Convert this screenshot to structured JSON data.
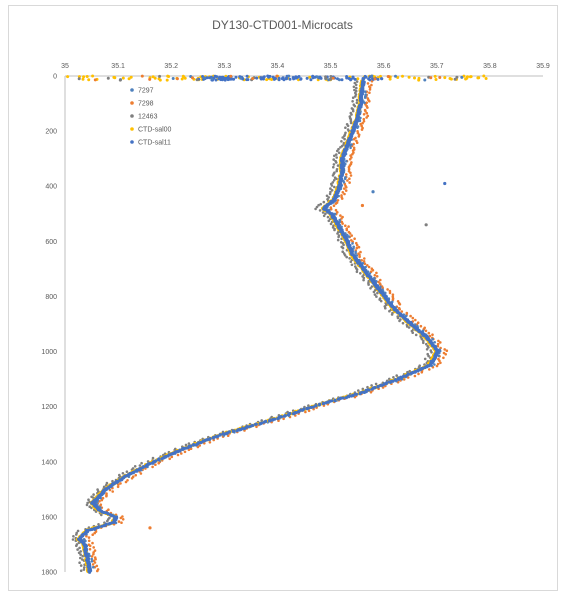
{
  "chart_data": {
    "type": "scatter",
    "title": "DY130-CTD001-Microcats",
    "xlabel": "",
    "ylabel": "",
    "x_axis_position": "top",
    "y_reversed": true,
    "xlim": [
      35,
      35.9
    ],
    "ylim": [
      0,
      1800
    ],
    "x_ticks": [
      "35",
      "35.1",
      "35.2",
      "35.3",
      "35.4",
      "35.5",
      "35.6",
      "35.7",
      "35.8",
      "35.9"
    ],
    "y_ticks": [
      "0",
      "200",
      "400",
      "600",
      "800",
      "1000",
      "1200",
      "1400",
      "1600",
      "1800"
    ],
    "grid": false,
    "legend_position": "top-left inside",
    "profile_depth": [
      0,
      20,
      50,
      100,
      150,
      200,
      250,
      300,
      350,
      400,
      450,
      480,
      500,
      550,
      600,
      650,
      700,
      750,
      800,
      850,
      900,
      950,
      1000,
      1050,
      1100,
      1150,
      1200,
      1250,
      1300,
      1350,
      1400,
      1450,
      1500,
      1550,
      1580,
      1600,
      1620,
      1650,
      1680,
      1700,
      1750,
      1800
    ],
    "series": [
      {
        "name": "7297",
        "color": "#4f81bd",
        "x_offset": 0.005,
        "x": [
          35.565,
          35.565,
          35.562,
          35.56,
          35.555,
          35.545,
          35.535,
          35.525,
          35.525,
          35.52,
          35.51,
          35.49,
          35.505,
          35.52,
          35.535,
          35.545,
          35.565,
          35.585,
          35.605,
          35.625,
          35.655,
          35.685,
          35.705,
          35.69,
          35.63,
          35.56,
          35.47,
          35.39,
          35.3,
          35.23,
          35.17,
          35.12,
          35.08,
          35.055,
          35.07,
          35.1,
          35.095,
          35.045,
          35.03,
          35.04,
          35.045,
          35.05
        ]
      },
      {
        "name": "7298",
        "color": "#ed7d31",
        "x_offset": 0.015,
        "x": [
          35.575,
          35.575,
          35.572,
          35.57,
          35.565,
          35.555,
          35.545,
          35.535,
          35.535,
          35.53,
          35.52,
          35.5,
          35.515,
          35.53,
          35.545,
          35.555,
          35.575,
          35.595,
          35.615,
          35.635,
          35.665,
          35.695,
          35.715,
          35.7,
          35.64,
          35.57,
          35.48,
          35.4,
          35.31,
          35.24,
          35.18,
          35.13,
          35.09,
          35.065,
          35.08,
          35.11,
          35.105,
          35.055,
          35.04,
          35.05,
          35.055,
          35.06
        ]
      },
      {
        "name": "12463",
        "color": "#7f7f7f",
        "x_offset": -0.012,
        "x": [
          35.55,
          35.55,
          35.547,
          35.545,
          35.54,
          35.53,
          35.52,
          35.51,
          35.51,
          35.505,
          35.495,
          35.475,
          35.49,
          35.505,
          35.52,
          35.53,
          35.55,
          35.57,
          35.59,
          35.61,
          35.64,
          35.67,
          35.69,
          35.675,
          35.615,
          35.545,
          35.455,
          35.375,
          35.285,
          35.215,
          35.155,
          35.105,
          35.065,
          35.04,
          35.055,
          35.085,
          35.08,
          35.03,
          35.015,
          35.025,
          35.03,
          35.035
        ]
      },
      {
        "name": "CTD-sal00",
        "color": "#ffc000",
        "x_offset": 0.0,
        "x": [
          35.56,
          35.56,
          35.557,
          35.555,
          35.55,
          35.54,
          35.53,
          35.52,
          35.52,
          35.515,
          35.505,
          35.485,
          35.5,
          35.515,
          35.53,
          35.54,
          35.56,
          35.58,
          35.6,
          35.62,
          35.65,
          35.68,
          35.7,
          35.685,
          35.625,
          35.555,
          35.465,
          35.385,
          35.295,
          35.225,
          35.165,
          35.115,
          35.075,
          35.05,
          35.065,
          35.095,
          35.09,
          35.04,
          35.025,
          35.035,
          35.04,
          35.045
        ]
      },
      {
        "name": "CTD-sal11",
        "color": "#4472c4",
        "x_offset": 0.002,
        "x": [
          35.562,
          35.562,
          35.559,
          35.557,
          35.552,
          35.542,
          35.532,
          35.522,
          35.522,
          35.517,
          35.507,
          35.487,
          35.502,
          35.517,
          35.532,
          35.542,
          35.562,
          35.582,
          35.602,
          35.622,
          35.652,
          35.682,
          35.702,
          35.687,
          35.627,
          35.557,
          35.467,
          35.387,
          35.297,
          35.227,
          35.167,
          35.117,
          35.077,
          35.052,
          35.067,
          35.097,
          35.092,
          35.042,
          35.027,
          35.037,
          35.042,
          35.047
        ]
      }
    ],
    "surface_spread": {
      "depth": [
        0,
        15
      ],
      "x_range": [
        35.0,
        35.8
      ]
    },
    "outliers": [
      {
        "series": "CTD-sal11",
        "x": 35.715,
        "y": 390
      },
      {
        "series": "7298",
        "x": 35.56,
        "y": 470
      },
      {
        "series": "12463",
        "x": 35.68,
        "y": 540
      },
      {
        "series": "7297",
        "x": 35.58,
        "y": 420
      },
      {
        "series": "7298",
        "x": 35.16,
        "y": 1640
      }
    ]
  }
}
